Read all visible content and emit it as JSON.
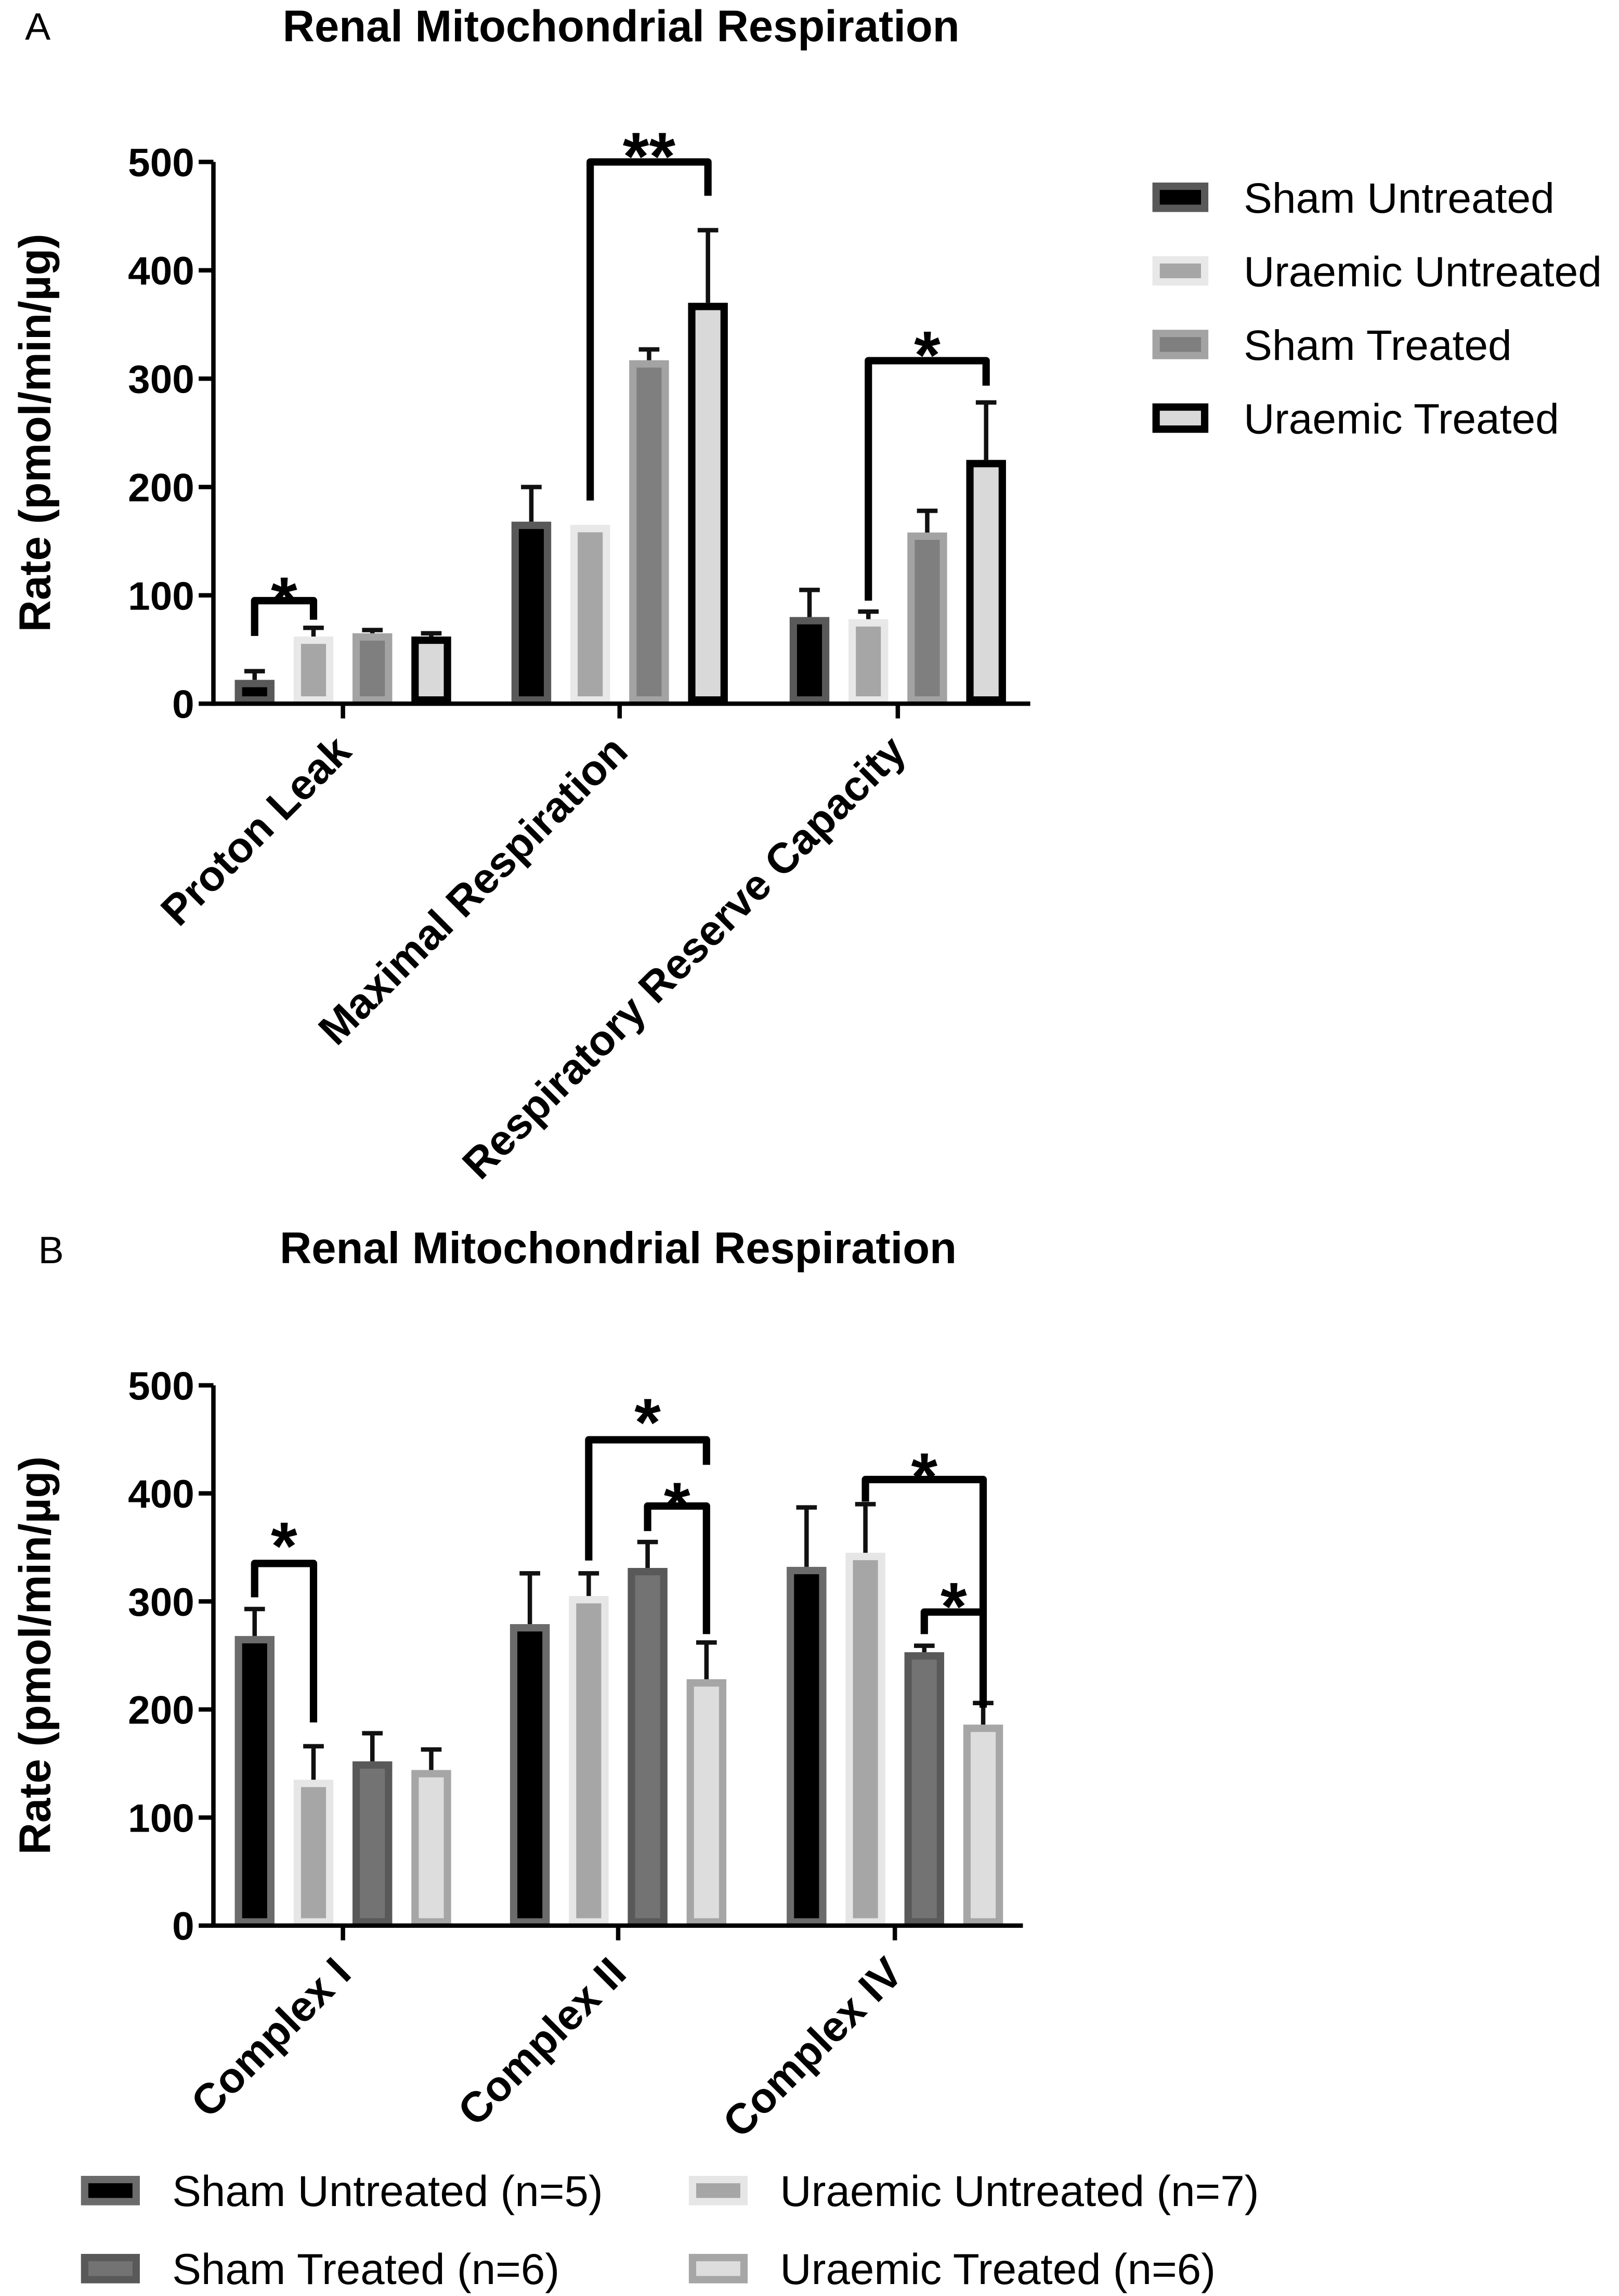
{
  "chart_data": [
    {
      "type": "bar",
      "panel_label": "A",
      "title": "Renal Mitochondrial Respiration",
      "xlabel": "",
      "ylabel": "Rate (pmol/min/µg)",
      "ylim": [
        0,
        500
      ],
      "yticks": [
        0,
        100,
        200,
        300,
        400,
        500
      ],
      "grid": false,
      "legend": "right",
      "categories": [
        "Proton Leak",
        "Maximal Respiration",
        "Respiratory Reserve Capacity"
      ],
      "series": [
        {
          "name": "Sham Untreated",
          "values": [
            22,
            168,
            80
          ],
          "error_upper": [
            8,
            32,
            25
          ],
          "fill": "#000000",
          "stroke": "#595959"
        },
        {
          "name": "Uraemic Untreated",
          "values": [
            62,
            165,
            78
          ],
          "error_upper": [
            8,
            0,
            7
          ],
          "fill": "#a6a6a6",
          "stroke": "#e8e8e8"
        },
        {
          "name": "Sham Treated",
          "values": [
            65,
            317,
            158
          ],
          "error_upper": [
            3,
            10,
            20
          ],
          "fill": "#7f7f7f",
          "stroke": "#a3a3a3"
        },
        {
          "name": "Uraemic Treated",
          "values": [
            62,
            370,
            225
          ],
          "error_upper": [
            3,
            67,
            53
          ],
          "fill": "#d9d9d9",
          "stroke": "#000000"
        }
      ],
      "significance": [
        {
          "category": "Proton Leak",
          "from": "Sham Untreated",
          "to": "Uraemic Untreated",
          "label": "*"
        },
        {
          "category": "Maximal Respiration",
          "from": "Uraemic Untreated",
          "to": "Uraemic Treated",
          "label": "**"
        },
        {
          "category": "Respiratory Reserve Capacity",
          "from": "Uraemic Untreated",
          "to": "Uraemic Treated",
          "label": "*"
        }
      ]
    },
    {
      "type": "bar",
      "panel_label": "B",
      "title": "Renal Mitochondrial Respiration",
      "xlabel": "",
      "ylabel": "Rate (pmol/min/µg)",
      "ylim": [
        0,
        500
      ],
      "yticks": [
        0,
        100,
        200,
        300,
        400,
        500
      ],
      "grid": false,
      "legend": "bottom",
      "categories": [
        "Complex I",
        "Complex II",
        "Complex IV"
      ],
      "series": [
        {
          "name": "Sham Untreated (n=5)",
          "values": [
            268,
            279,
            332
          ],
          "error_upper": [
            25,
            47,
            55
          ],
          "fill": "#000000",
          "stroke": "#6b6b6b"
        },
        {
          "name": "Uraemic Untreated (n=7)",
          "values": [
            135,
            305,
            345
          ],
          "error_upper": [
            31,
            21,
            45
          ],
          "fill": "#a6a6a6",
          "stroke": "#e6e6e6"
        },
        {
          "name": "Sham Treated (n=6)",
          "values": [
            152,
            331,
            253
          ],
          "error_upper": [
            26,
            24,
            6
          ],
          "fill": "#737373",
          "stroke": "#595959"
        },
        {
          "name": "Uraemic Treated (n=6)",
          "values": [
            144,
            228,
            186
          ],
          "error_upper": [
            19,
            34,
            20
          ],
          "fill": "#dddddd",
          "stroke": "#a6a6a6"
        }
      ],
      "significance": [
        {
          "category": "Complex I",
          "from": "Sham Untreated (n=5)",
          "to": "Uraemic Untreated (n=7)",
          "label": "*"
        },
        {
          "category": "Complex II",
          "from": "Uraemic Untreated (n=7)",
          "to": "Uraemic Treated (n=6)",
          "label": "*"
        },
        {
          "category": "Complex II",
          "from": "Sham Treated (n=6)",
          "to": "Uraemic Treated (n=6)",
          "label": "*"
        },
        {
          "category": "Complex IV",
          "from": "Uraemic Untreated (n=7)",
          "to": "Uraemic Treated (n=6)",
          "label": "*"
        },
        {
          "category": "Complex IV",
          "from": "Sham Treated (n=6)",
          "to": "Uraemic Treated (n=6)",
          "label": "*"
        }
      ]
    }
  ]
}
